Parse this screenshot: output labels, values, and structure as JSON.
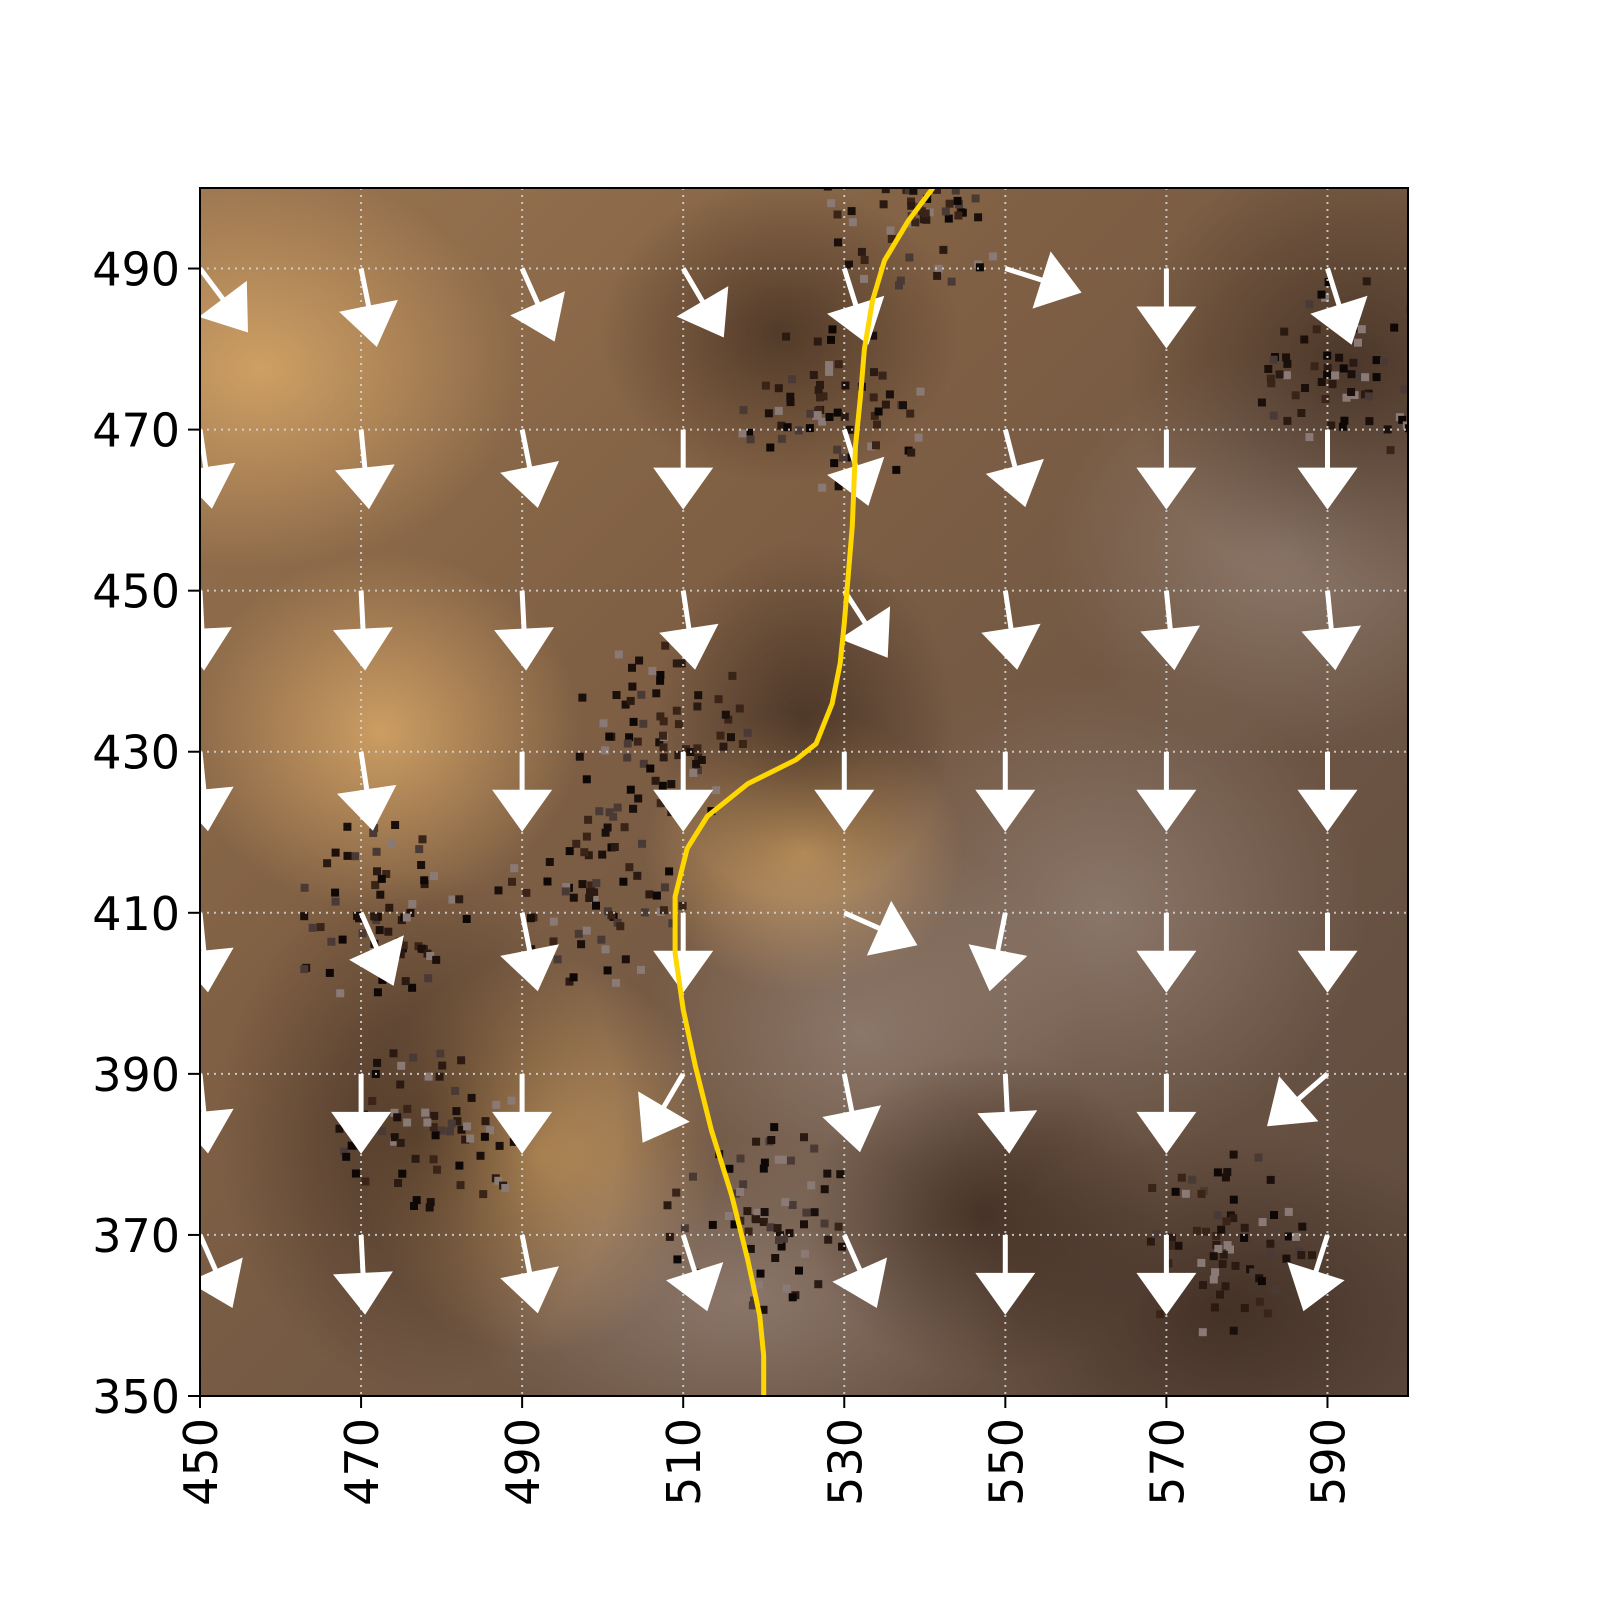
{
  "chart_data": {
    "type": "quiver",
    "title": "",
    "xlabel": "",
    "ylabel": "",
    "xlim": [
      450,
      600
    ],
    "ylim": [
      350,
      500
    ],
    "x_ticks": [
      "450",
      "470",
      "490",
      "510",
      "530",
      "550",
      "570",
      "590"
    ],
    "y_ticks": [
      "350",
      "370",
      "390",
      "410",
      "430",
      "450",
      "470",
      "490"
    ],
    "grid": true,
    "background": "textured brown terrain image",
    "colors": {
      "background_terrain": "#7a5c42",
      "arrow": "#ffffff",
      "streamline": "#ffd700",
      "grid": "#d9d9d9"
    },
    "vectors": [
      {
        "x": 450,
        "y": 490,
        "u": 0.6,
        "v": -0.8
      },
      {
        "x": 470,
        "y": 490,
        "u": 0.2,
        "v": -1.0
      },
      {
        "x": 490,
        "y": 490,
        "u": 0.4,
        "v": -0.9
      },
      {
        "x": 510,
        "y": 490,
        "u": 0.5,
        "v": -0.85
      },
      {
        "x": 530,
        "y": 490,
        "u": 0.3,
        "v": -0.95
      },
      {
        "x": 550,
        "y": 490,
        "u": 0.95,
        "v": -0.3
      },
      {
        "x": 570,
        "y": 490,
        "u": 0.0,
        "v": -1.0
      },
      {
        "x": 590,
        "y": 490,
        "u": 0.3,
        "v": -0.95
      },
      {
        "x": 450,
        "y": 470,
        "u": 0.15,
        "v": -1.0
      },
      {
        "x": 470,
        "y": 470,
        "u": 0.1,
        "v": -1.0
      },
      {
        "x": 490,
        "y": 470,
        "u": 0.2,
        "v": -1.0
      },
      {
        "x": 510,
        "y": 470,
        "u": 0.0,
        "v": -1.0
      },
      {
        "x": 530,
        "y": 470,
        "u": 0.3,
        "v": -0.95
      },
      {
        "x": 550,
        "y": 470,
        "u": 0.25,
        "v": -0.97
      },
      {
        "x": 570,
        "y": 470,
        "u": 0.0,
        "v": -1.0
      },
      {
        "x": 590,
        "y": 470,
        "u": 0.0,
        "v": -1.0
      },
      {
        "x": 450,
        "y": 450,
        "u": 0.05,
        "v": -1.0
      },
      {
        "x": 470,
        "y": 450,
        "u": 0.05,
        "v": -1.0
      },
      {
        "x": 490,
        "y": 450,
        "u": 0.05,
        "v": -1.0
      },
      {
        "x": 510,
        "y": 450,
        "u": 0.15,
        "v": -1.0
      },
      {
        "x": 530,
        "y": 450,
        "u": 0.55,
        "v": -0.85
      },
      {
        "x": 550,
        "y": 450,
        "u": 0.15,
        "v": -1.0
      },
      {
        "x": 570,
        "y": 450,
        "u": 0.1,
        "v": -1.0
      },
      {
        "x": 590,
        "y": 450,
        "u": 0.1,
        "v": -1.0
      },
      {
        "x": 450,
        "y": 430,
        "u": 0.1,
        "v": -1.0
      },
      {
        "x": 470,
        "y": 430,
        "u": 0.15,
        "v": -1.0
      },
      {
        "x": 490,
        "y": 430,
        "u": 0.0,
        "v": -1.0
      },
      {
        "x": 510,
        "y": 430,
        "u": 0.0,
        "v": -1.0
      },
      {
        "x": 530,
        "y": 430,
        "u": 0.0,
        "v": -1.0
      },
      {
        "x": 550,
        "y": 430,
        "u": 0.0,
        "v": -1.0
      },
      {
        "x": 570,
        "y": 430,
        "u": 0.0,
        "v": -1.0
      },
      {
        "x": 590,
        "y": 430,
        "u": 0.0,
        "v": -1.0
      },
      {
        "x": 450,
        "y": 410,
        "u": 0.1,
        "v": -1.0
      },
      {
        "x": 470,
        "y": 410,
        "u": 0.4,
        "v": -0.9
      },
      {
        "x": 490,
        "y": 410,
        "u": 0.2,
        "v": -1.0
      },
      {
        "x": 510,
        "y": 410,
        "u": 0.0,
        "v": -1.0
      },
      {
        "x": 530,
        "y": 410,
        "u": 0.9,
        "v": -0.4
      },
      {
        "x": 550,
        "y": 410,
        "u": -0.2,
        "v": -1.0
      },
      {
        "x": 570,
        "y": 410,
        "u": 0.0,
        "v": -1.0
      },
      {
        "x": 590,
        "y": 410,
        "u": 0.0,
        "v": -1.0
      },
      {
        "x": 450,
        "y": 390,
        "u": 0.1,
        "v": -1.0
      },
      {
        "x": 470,
        "y": 390,
        "u": 0.0,
        "v": -1.0
      },
      {
        "x": 490,
        "y": 390,
        "u": 0.0,
        "v": -1.0
      },
      {
        "x": 510,
        "y": 390,
        "u": -0.5,
        "v": -0.85
      },
      {
        "x": 530,
        "y": 390,
        "u": 0.2,
        "v": -1.0
      },
      {
        "x": 550,
        "y": 390,
        "u": 0.05,
        "v": -1.0
      },
      {
        "x": 570,
        "y": 390,
        "u": 0.0,
        "v": -1.0
      },
      {
        "x": 590,
        "y": 390,
        "u": -0.75,
        "v": -0.65
      },
      {
        "x": 450,
        "y": 370,
        "u": 0.4,
        "v": -0.9
      },
      {
        "x": 470,
        "y": 370,
        "u": 0.05,
        "v": -1.0
      },
      {
        "x": 490,
        "y": 370,
        "u": 0.2,
        "v": -1.0
      },
      {
        "x": 510,
        "y": 370,
        "u": 0.3,
        "v": -0.95
      },
      {
        "x": 530,
        "y": 370,
        "u": 0.4,
        "v": -0.9
      },
      {
        "x": 550,
        "y": 370,
        "u": 0.0,
        "v": -1.0
      },
      {
        "x": 570,
        "y": 370,
        "u": 0.0,
        "v": -1.0
      },
      {
        "x": 590,
        "y": 370,
        "u": -0.3,
        "v": -0.95
      }
    ],
    "streamline": [
      [
        520,
        350
      ],
      [
        520,
        355
      ],
      [
        519.5,
        360
      ],
      [
        518,
        367
      ],
      [
        516,
        375
      ],
      [
        513.5,
        383
      ],
      [
        511.5,
        391
      ],
      [
        510,
        398
      ],
      [
        509,
        405
      ],
      [
        509,
        412
      ],
      [
        510.5,
        418
      ],
      [
        513,
        422
      ],
      [
        518,
        426
      ],
      [
        524,
        429
      ],
      [
        526.5,
        431
      ],
      [
        528.5,
        436
      ],
      [
        529.5,
        441
      ],
      [
        530,
        446
      ],
      [
        530.5,
        452
      ],
      [
        531,
        458
      ],
      [
        531.2,
        463
      ],
      [
        531.4,
        468
      ],
      [
        532,
        474
      ],
      [
        532.5,
        480
      ],
      [
        533.5,
        486
      ],
      [
        535,
        491
      ],
      [
        538,
        496
      ],
      [
        541,
        500
      ]
    ]
  }
}
